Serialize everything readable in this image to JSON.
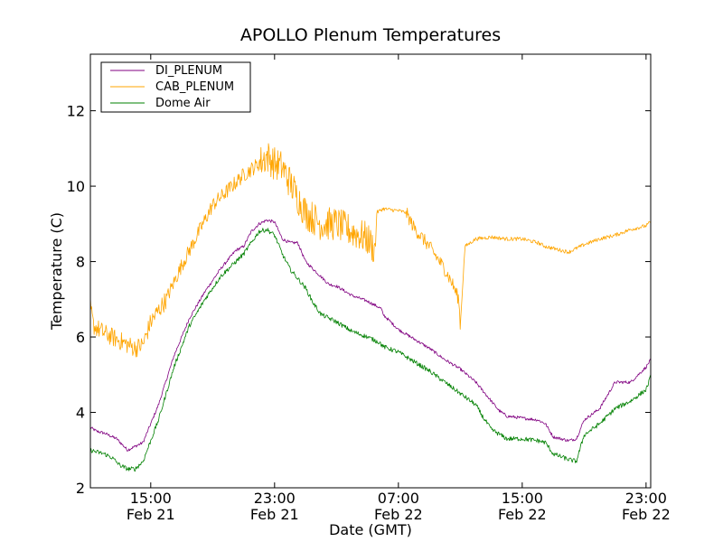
{
  "chart_data": {
    "type": "line",
    "title": "APOLLO Plenum Temperatures",
    "xlabel": "Date (GMT)",
    "ylabel": "Temperature (C)",
    "ylim": [
      2,
      13.5
    ],
    "xlim_hours": [
      11.1,
      47.3
    ],
    "grid": false,
    "legend_position": "top-left",
    "y_ticks": [
      "2",
      "4",
      "6",
      "8",
      "10",
      "12"
    ],
    "x_ticks": [
      {
        "hour": 15,
        "time": "15:00",
        "date": "Feb 21"
      },
      {
        "hour": 23,
        "time": "23:00",
        "date": "Feb 21"
      },
      {
        "hour": 31,
        "time": "07:00",
        "date": "Feb 22"
      },
      {
        "hour": 39,
        "time": "15:00",
        "date": "Feb 22"
      },
      {
        "hour": 47,
        "time": "23:00",
        "date": "Feb 22"
      }
    ],
    "series": [
      {
        "name": "DI_PLENUM",
        "color": "#800080",
        "noise": 0.04,
        "x": [
          11.1,
          11.5,
          12.0,
          12.8,
          13.5,
          14.5,
          15.5,
          16.5,
          17.5,
          18.5,
          19.5,
          20.5,
          21.0,
          21.5,
          22.0,
          22.5,
          23.0,
          23.5,
          24.0,
          24.5,
          25.0,
          25.5,
          26.0,
          26.5,
          27.0,
          28.0,
          29.0,
          29.9,
          30.0,
          31.0,
          32.0,
          33.0,
          34.0,
          35.0,
          36.0,
          36.5,
          37.0,
          37.5,
          38.0,
          39.0,
          40.0,
          40.5,
          41.0,
          42.0,
          42.5,
          43.0,
          44.0,
          45.0,
          46.0,
          47.0,
          47.3
        ],
        "values": [
          3.6,
          3.5,
          3.45,
          3.3,
          3.0,
          3.2,
          4.2,
          5.5,
          6.5,
          7.2,
          7.8,
          8.3,
          8.4,
          8.8,
          9.0,
          9.1,
          9.05,
          8.6,
          8.5,
          8.5,
          8.0,
          7.8,
          7.6,
          7.4,
          7.35,
          7.1,
          6.95,
          6.75,
          6.6,
          6.2,
          5.95,
          5.7,
          5.4,
          5.15,
          4.8,
          4.55,
          4.3,
          4.05,
          3.9,
          3.85,
          3.8,
          3.7,
          3.35,
          3.25,
          3.3,
          3.8,
          4.1,
          4.8,
          4.8,
          5.2,
          5.4
        ]
      },
      {
        "name": "CAB_PLENUM",
        "color": "#FFA500",
        "noise_regions": [
          {
            "from": 11.1,
            "to": 16.0,
            "amp": 0.25
          },
          {
            "from": 16.0,
            "to": 22.0,
            "amp": 0.2
          },
          {
            "from": 22.0,
            "to": 29.6,
            "amp": 0.45
          },
          {
            "from": 29.6,
            "to": 31.5,
            "amp": 0.05
          },
          {
            "from": 31.5,
            "to": 35.0,
            "amp": 0.18
          },
          {
            "from": 35.0,
            "to": 47.3,
            "amp": 0.05
          }
        ],
        "x": [
          11.1,
          11.3,
          12.0,
          13.0,
          14.0,
          14.5,
          15.0,
          16.0,
          17.0,
          18.0,
          19.0,
          20.0,
          21.0,
          22.0,
          22.5,
          23.0,
          23.5,
          24.0,
          25.0,
          26.0,
          27.0,
          28.0,
          29.0,
          29.5,
          29.6,
          30.0,
          31.0,
          31.5,
          32.0,
          33.0,
          34.0,
          34.5,
          34.9,
          35.0,
          35.3,
          36.0,
          37.0,
          38.0,
          39.0,
          40.0,
          40.5,
          41.0,
          42.0,
          43.0,
          44.0,
          45.0,
          46.0,
          47.0,
          47.3
        ],
        "values": [
          6.8,
          6.3,
          6.1,
          5.9,
          5.7,
          5.8,
          6.4,
          7.0,
          7.9,
          8.7,
          9.5,
          9.9,
          10.3,
          10.6,
          10.8,
          10.6,
          10.5,
          10.1,
          9.3,
          9.0,
          9.0,
          8.8,
          8.6,
          8.3,
          9.3,
          9.4,
          9.35,
          9.3,
          8.9,
          8.4,
          7.8,
          7.4,
          7.0,
          6.3,
          8.4,
          8.6,
          8.65,
          8.6,
          8.6,
          8.5,
          8.4,
          8.35,
          8.25,
          8.45,
          8.6,
          8.7,
          8.85,
          8.95,
          9.05
        ]
      },
      {
        "name": "Dome Air",
        "color": "#008000",
        "noise": 0.06,
        "x": [
          11.1,
          11.5,
          12.0,
          12.5,
          13.0,
          13.5,
          14.0,
          14.5,
          15.5,
          16.5,
          17.5,
          18.5,
          19.5,
          20.5,
          21.0,
          21.5,
          22.0,
          22.5,
          23.0,
          23.5,
          24.0,
          25.0,
          25.5,
          26.0,
          27.0,
          28.0,
          29.0,
          29.8,
          30.0,
          31.0,
          32.0,
          33.0,
          34.0,
          35.0,
          36.0,
          36.5,
          37.0,
          38.0,
          39.0,
          40.0,
          40.5,
          41.0,
          42.0,
          42.5,
          43.0,
          44.0,
          45.0,
          46.0,
          47.0,
          47.3
        ],
        "values": [
          3.0,
          2.95,
          2.9,
          2.8,
          2.6,
          2.5,
          2.5,
          2.7,
          3.8,
          5.2,
          6.3,
          7.0,
          7.6,
          8.0,
          8.2,
          8.5,
          8.8,
          8.85,
          8.7,
          8.2,
          7.8,
          7.3,
          6.9,
          6.6,
          6.4,
          6.15,
          6.0,
          5.85,
          5.75,
          5.6,
          5.35,
          5.1,
          4.8,
          4.5,
          4.2,
          3.85,
          3.55,
          3.3,
          3.3,
          3.25,
          3.2,
          2.9,
          2.75,
          2.7,
          3.4,
          3.7,
          4.1,
          4.3,
          4.6,
          4.95
        ]
      }
    ]
  }
}
